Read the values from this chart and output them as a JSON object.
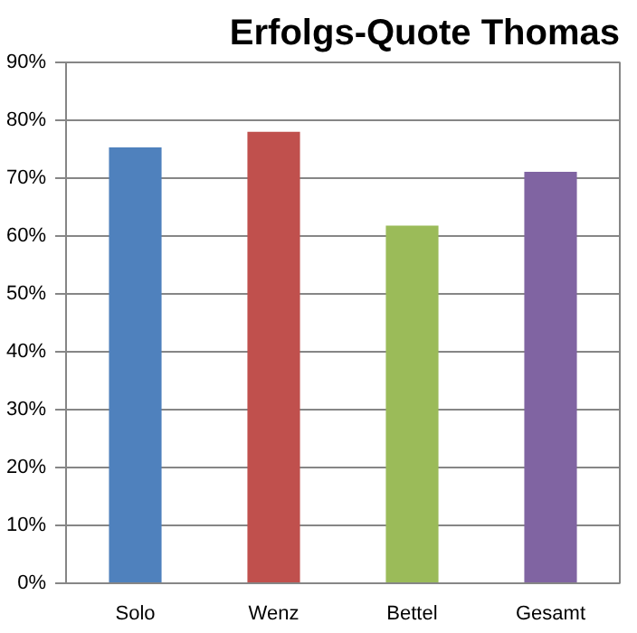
{
  "chart_data": {
    "type": "bar",
    "title": "Erfolgs-Quote Thomas",
    "categories": [
      "Solo",
      "Wenz",
      "Bettel",
      "Gesamt"
    ],
    "values": [
      75.3,
      78.0,
      61.8,
      71.1
    ],
    "colors": [
      "#4f81bd",
      "#c0504d",
      "#9bbb59",
      "#8064a2"
    ],
    "ylim": [
      0,
      90
    ],
    "yticks": [
      {
        "value": 0,
        "label": "0%"
      },
      {
        "value": 10,
        "label": "10%"
      },
      {
        "value": 20,
        "label": "20%"
      },
      {
        "value": 30,
        "label": "30%"
      },
      {
        "value": 40,
        "label": "40%"
      },
      {
        "value": 50,
        "label": "50%"
      },
      {
        "value": 60,
        "label": "60%"
      },
      {
        "value": 70,
        "label": "70%"
      },
      {
        "value": 80,
        "label": "80%"
      },
      {
        "value": 90,
        "label": "90%"
      }
    ],
    "grid": "y"
  }
}
